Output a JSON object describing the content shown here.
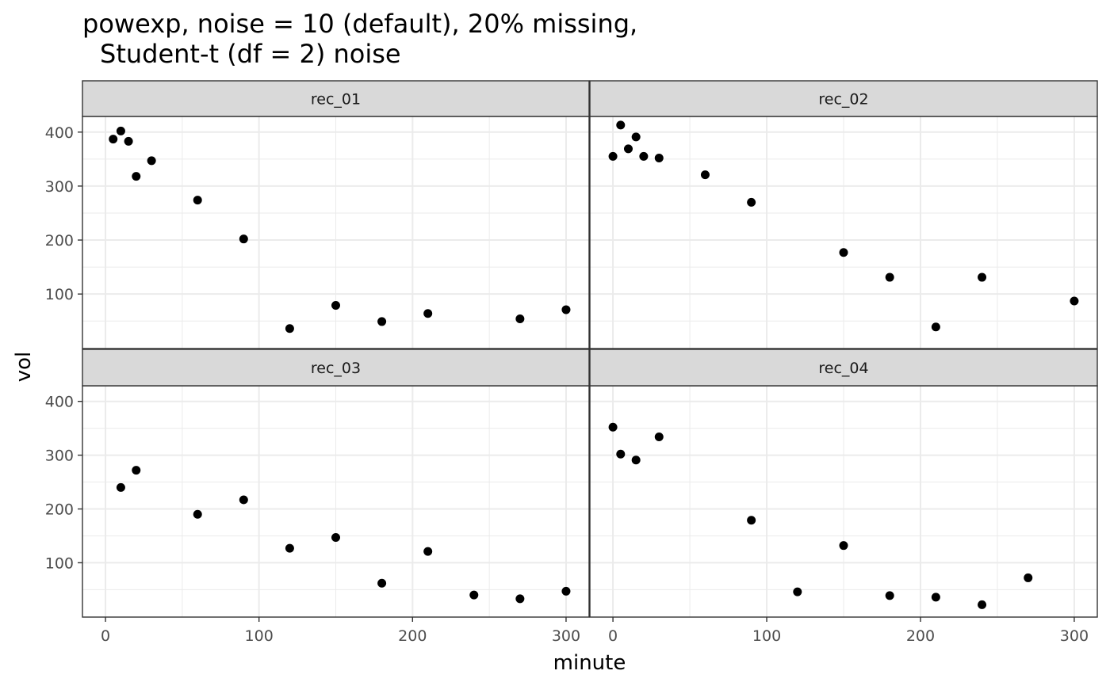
{
  "chart_data": {
    "type": "scatter",
    "title_line1": "powexp, noise = 10 (default), 20% missing,",
    "title_line2": "Student-t (df = 2) noise",
    "xlabel": "minute",
    "ylabel": "vol",
    "x_ticks": [
      0,
      100,
      200,
      300
    ],
    "y_ticks": [
      100,
      200,
      300,
      400
    ],
    "grid": true,
    "facet_layout": "2x2",
    "point_color": "#000000",
    "strip_fill": "#d9d9d9",
    "panels": [
      {
        "name": "rec_01",
        "xlim": [
          -15,
          315
        ],
        "ylim": [
          -1,
          429
        ],
        "points": [
          [
            5,
            387
          ],
          [
            10,
            402
          ],
          [
            15,
            383
          ],
          [
            20,
            318
          ],
          [
            30,
            347
          ],
          [
            60,
            274
          ],
          [
            90,
            202
          ],
          [
            120,
            36
          ],
          [
            150,
            79
          ],
          [
            180,
            49
          ],
          [
            210,
            64
          ],
          [
            270,
            54
          ],
          [
            300,
            71
          ]
        ]
      },
      {
        "name": "rec_02",
        "xlim": [
          -15,
          315
        ],
        "ylim": [
          -1,
          429
        ],
        "points": [
          [
            0,
            355
          ],
          [
            5,
            413
          ],
          [
            10,
            369
          ],
          [
            15,
            391
          ],
          [
            20,
            355
          ],
          [
            30,
            352
          ],
          [
            60,
            321
          ],
          [
            90,
            270
          ],
          [
            150,
            177
          ],
          [
            180,
            131
          ],
          [
            210,
            39
          ],
          [
            240,
            131
          ],
          [
            300,
            87
          ]
        ]
      },
      {
        "name": "rec_03",
        "xlim": [
          -15,
          315
        ],
        "ylim": [
          -1,
          429
        ],
        "points": [
          [
            10,
            240
          ],
          [
            20,
            272
          ],
          [
            60,
            190
          ],
          [
            90,
            217
          ],
          [
            120,
            127
          ],
          [
            150,
            147
          ],
          [
            180,
            62
          ],
          [
            210,
            121
          ],
          [
            240,
            40
          ],
          [
            270,
            33
          ],
          [
            300,
            47
          ]
        ]
      },
      {
        "name": "rec_04",
        "xlim": [
          -15,
          315
        ],
        "ylim": [
          -1,
          429
        ],
        "points": [
          [
            0,
            352
          ],
          [
            5,
            302
          ],
          [
            15,
            291
          ],
          [
            30,
            334
          ],
          [
            90,
            179
          ],
          [
            120,
            46
          ],
          [
            150,
            132
          ],
          [
            180,
            39
          ],
          [
            210,
            36
          ],
          [
            240,
            22
          ],
          [
            270,
            72
          ]
        ]
      }
    ]
  }
}
